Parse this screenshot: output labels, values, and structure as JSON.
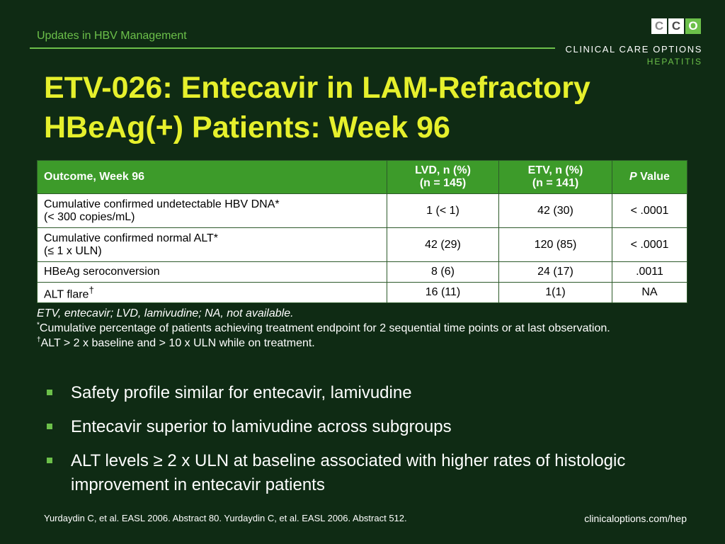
{
  "header": {
    "title": "Updates in HBV Management",
    "logo_mark": [
      "C",
      "C",
      "O"
    ],
    "logo_name": "CLINICAL CARE OPTIONS",
    "logo_sub": "HEPATITIS",
    "colors": {
      "accent_green": "#6cc04a",
      "title_yellow": "#e6f02c",
      "background": "#0f2b14",
      "table_header": "#3d9b2a"
    }
  },
  "slide": {
    "title_line1": "ETV-026: Entecavir in LAM-Refractory",
    "title_line2": "HBeAg(+) Patients: Week 96"
  },
  "table": {
    "headers": {
      "outcome": "Outcome, Week 96",
      "lvd_line1": "LVD, n (%)",
      "lvd_line2": "(n = 145)",
      "etv_line1": "ETV, n (%)",
      "etv_line2": "(n = 141)",
      "p_italic": "P",
      "p_rest": " Value"
    },
    "rows": [
      {
        "outcome_line1": "Cumulative confirmed undetectable HBV DNA*",
        "outcome_line2": "(< 300 copies/mL)",
        "lvd": "1 (< 1)",
        "etv": "42 (30)",
        "p": "< .0001"
      },
      {
        "outcome_line1": "Cumulative confirmed normal ALT*",
        "outcome_line2": "(≤ 1 x ULN)",
        "lvd": "42 (29)",
        "etv": "120 (85)",
        "p": "< .0001"
      },
      {
        "outcome_line1": "HBeAg seroconversion",
        "lvd": "8 (6)",
        "etv": "24 (17)",
        "p": ".0011"
      },
      {
        "outcome_line1": "ALT flare",
        "outcome_sup": "†",
        "lvd": "16 (11)",
        "etv": "1(1)",
        "p": "NA"
      }
    ]
  },
  "notes": {
    "abbrev": "ETV, entecavir; LVD, lamivudine; NA, not available.",
    "note1_mark": "*",
    "note1": "Cumulative percentage of patients achieving treatment endpoint for 2 sequential time points or at last observation.",
    "note2_mark": "†",
    "note2": "ALT > 2 x baseline and > 10 x ULN while on treatment."
  },
  "bullets": [
    "Safety profile similar for entecavir, lamivudine",
    "Entecavir superior to lamivudine across subgroups",
    "ALT levels ≥ 2 x ULN at baseline associated with higher rates of histologic improvement in entecavir patients"
  ],
  "footer": {
    "citation": "Yurdaydin C, et al. EASL 2006. Abstract 80. Yurdaydin C, et al. EASL 2006. Abstract 512.",
    "url": "clinicaloptions.com/hep"
  }
}
